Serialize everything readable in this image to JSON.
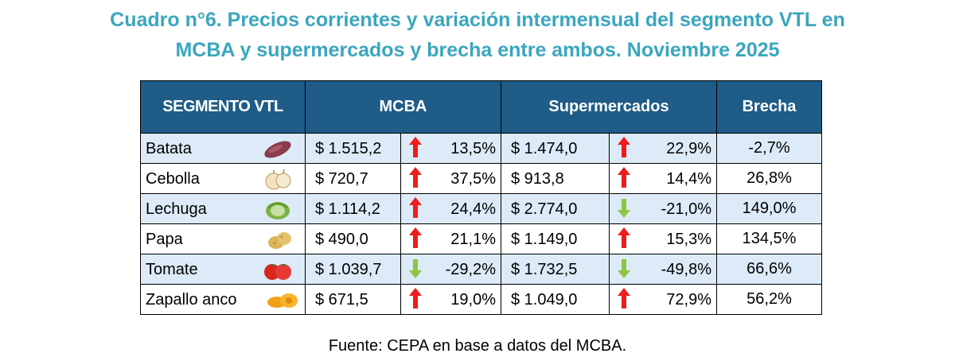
{
  "title_line1": "Cuadro n°6.  Precios corrientes y variación intermensual del segmento VTL en",
  "title_line2": "MCBA y supermercados y brecha entre ambos. Noviembre 2025",
  "headers": {
    "segmento": "SEGMENTO VTL",
    "mcba": "MCBA",
    "super": "Supermercados",
    "brecha": "Brecha"
  },
  "colors": {
    "header_bg": "#1f5c87",
    "title": "#3aa6be",
    "row_alt": "#dcebf7",
    "arrow_up": "#ee1c1c",
    "arrow_down": "#8dc63f"
  },
  "rows": [
    {
      "producto": "Batata",
      "icon": "sweet-potato-icon",
      "mcba_precio": "$ 1.515,2",
      "mcba_dir": "up",
      "mcba_var": "13,5%",
      "super_precio": "$ 1.474,0",
      "super_dir": "up",
      "super_var": "22,9%",
      "brecha": "-2,7%"
    },
    {
      "producto": "Cebolla",
      "icon": "onion-icon",
      "mcba_precio": "$ 720,7",
      "mcba_dir": "up",
      "mcba_var": "37,5%",
      "super_precio": "$ 913,8",
      "super_dir": "up",
      "super_var": "14,4%",
      "brecha": "26,8%"
    },
    {
      "producto": "Lechuga",
      "icon": "lettuce-icon",
      "mcba_precio": "$ 1.114,2",
      "mcba_dir": "up",
      "mcba_var": "24,4%",
      "super_precio": "$ 2.774,0",
      "super_dir": "down",
      "super_var": "-21,0%",
      "brecha": "149,0%"
    },
    {
      "producto": "Papa",
      "icon": "potato-icon",
      "mcba_precio": "$ 490,0",
      "mcba_dir": "up",
      "mcba_var": "21,1%",
      "super_precio": "$ 1.149,0",
      "super_dir": "up",
      "super_var": "15,3%",
      "brecha": "134,5%"
    },
    {
      "producto": "Tomate",
      "icon": "tomato-icon",
      "mcba_precio": "$ 1.039,7",
      "mcba_dir": "down",
      "mcba_var": "-29,2%",
      "super_precio": "$ 1.732,5",
      "super_dir": "down",
      "super_var": "-49,8%",
      "brecha": "66,6%"
    },
    {
      "producto": "Zapallo anco",
      "icon": "squash-icon",
      "mcba_precio": "$ 671,5",
      "mcba_dir": "up",
      "mcba_var": "19,0%",
      "super_precio": "$ 1.049,0",
      "super_dir": "up",
      "super_var": "72,9%",
      "brecha": "56,2%"
    }
  ],
  "fuente": "Fuente: CEPA en base a datos del MCBA."
}
